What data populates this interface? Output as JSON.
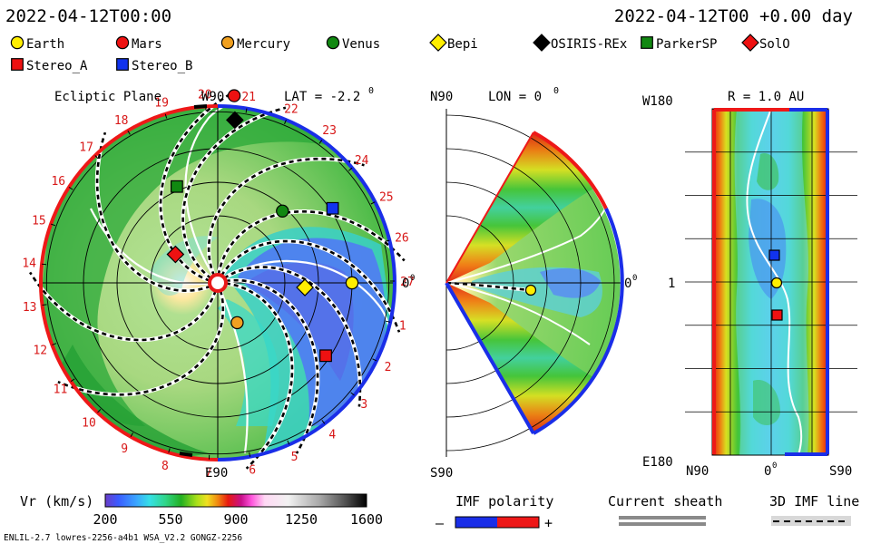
{
  "header": {
    "left_time": "2022-04-12T00:00",
    "right_time": "2022-04-12T00 +0.00 day"
  },
  "legend": [
    {
      "name": "Earth",
      "marker": "circle",
      "color": "#ffee00"
    },
    {
      "name": "Mars",
      "marker": "circle",
      "color": "#ee1111"
    },
    {
      "name": "Mercury",
      "marker": "circle",
      "color": "#f0a020"
    },
    {
      "name": "Venus",
      "marker": "circle",
      "color": "#118811"
    },
    {
      "name": "Bepi",
      "marker": "diamond",
      "color": "#ffee00"
    },
    {
      "name": "OSIRIS-REx",
      "marker": "diamond",
      "color": "#000000"
    },
    {
      "name": "ParkerSP",
      "marker": "square",
      "color": "#118811"
    },
    {
      "name": "SolO",
      "marker": "diamond",
      "color": "#ee1111"
    },
    {
      "name": "Stereo_A",
      "marker": "square",
      "color": "#ee1111"
    },
    {
      "name": "Stereo_B",
      "marker": "square",
      "color": "#1133ee"
    }
  ],
  "ecliptic": {
    "title": "Ecliptic Plane",
    "lat_label": "LAT = -2.2",
    "lat_sup": "0",
    "top_label": "W90",
    "bottom_label": "E90",
    "right_label": "0",
    "right_sup": "0",
    "carrington_ticks": [
      "1",
      "2",
      "3",
      "4",
      "5",
      "6",
      "7",
      "8",
      "9",
      "10",
      "11",
      "12",
      "13",
      "14",
      "15",
      "16",
      "17",
      "18",
      "19",
      "20",
      "21",
      "22",
      "23",
      "24",
      "25",
      "26",
      "27"
    ]
  },
  "meridional": {
    "top_label": "N90",
    "bottom_label": "S90",
    "lon_label": "LON = 0",
    "lon_sup": "0",
    "right_label": "0",
    "right_sup": "0"
  },
  "radial": {
    "title": "R = 1.0 AU",
    "top_left": "W180",
    "bottom_left": "E180",
    "mid_left": "1",
    "x_left": "N90",
    "x_mid": "0",
    "x_mid_sup": "0",
    "x_right": "S90"
  },
  "colorbar": {
    "label": "Vr (km/s)",
    "ticks": [
      "200",
      "550",
      "900",
      "1250",
      "1600"
    ],
    "min": 200,
    "max": 1600
  },
  "imf": {
    "label": "IMF polarity",
    "minus": "–",
    "plus": "+"
  },
  "sheath": {
    "label": "Current sheath"
  },
  "imf3d": {
    "label": "3D IMF line"
  },
  "footer": {
    "left": "ENLIL-2.7 lowres-2256-a4b1 WSA_V2.2 GONGZ-2256"
  },
  "chart_data": [
    {
      "type": "scatter",
      "title": "Ecliptic Plane",
      "subtitle": "LAT = -2.2°",
      "metric": "Vr (km/s)",
      "objects": [
        {
          "name": "Earth",
          "r_au": 1.0,
          "lon_deg": 0
        },
        {
          "name": "Mercury",
          "r_au": 0.33,
          "lon_deg": -64
        },
        {
          "name": "Venus",
          "r_au": 0.72,
          "lon_deg": 48
        },
        {
          "name": "Mars",
          "r_au": 1.4,
          "lon_deg": 85
        },
        {
          "name": "Bepi",
          "r_au": 0.65,
          "lon_deg": -3
        },
        {
          "name": "OSIRIS-REx",
          "r_au": 1.22,
          "lon_deg": 84
        },
        {
          "name": "ParkerSP",
          "r_au": 0.78,
          "lon_deg": 113
        },
        {
          "name": "SolO",
          "r_au": 0.38,
          "lon_deg": 146
        },
        {
          "name": "Stereo_A",
          "r_au": 0.97,
          "lon_deg": -34
        },
        {
          "name": "Stereo_B",
          "r_au": 1.02,
          "lon_deg": 33
        }
      ]
    },
    {
      "type": "scatter",
      "title": "",
      "subtitle": "LON = 0°",
      "metric": "Vr (km/s)",
      "objects": [
        {
          "name": "Earth",
          "r_au": 1.0,
          "lat_deg": -2
        }
      ]
    },
    {
      "type": "heatmap",
      "title": "R = 1.0 AU",
      "metric": "Vr (km/s)",
      "xlabel": "",
      "ylabel": "",
      "objects": [
        {
          "name": "Earth",
          "lat_deg": -2,
          "lon_deg": 0
        },
        {
          "name": "Stereo_B",
          "lat_deg": 1,
          "lon_deg": 33
        },
        {
          "name": "Stereo_A",
          "lat_deg": -3,
          "lon_deg": -34
        }
      ]
    }
  ]
}
